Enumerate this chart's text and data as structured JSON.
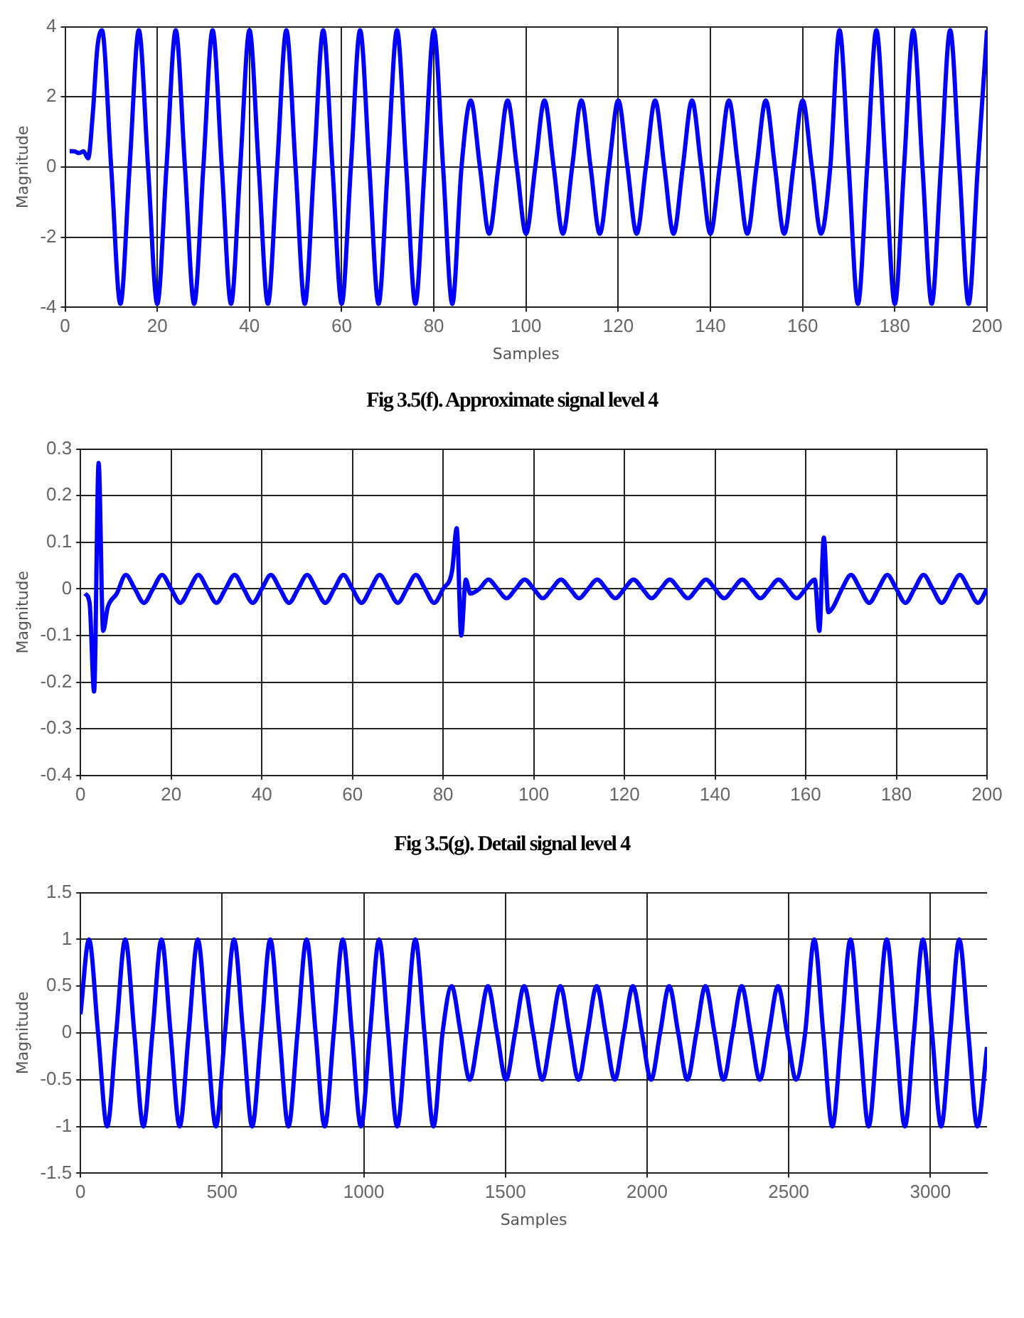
{
  "chart_data": [
    {
      "type": "line",
      "xlabel": "Samples",
      "ylabel": "Magnitude",
      "color": "#0000ff",
      "marker": "none",
      "grid": true,
      "xlim": [
        0,
        200
      ],
      "ylim": [
        -4,
        4
      ],
      "xticks": [
        0,
        20,
        40,
        60,
        80,
        100,
        120,
        140,
        160,
        180,
        200
      ],
      "yticks": [
        -4,
        -2,
        0,
        2,
        4
      ],
      "annotations": [
        "Fig 3.5(f). Approximate signal level 4"
      ],
      "x": [
        1,
        2,
        3,
        4,
        5,
        6,
        7,
        8,
        10,
        12,
        14,
        16,
        18,
        20,
        22,
        24,
        26,
        28,
        30,
        32,
        34,
        36,
        38,
        40,
        42,
        44,
        46,
        48,
        50,
        52,
        54,
        56,
        58,
        60,
        62,
        64,
        66,
        68,
        70,
        72,
        74,
        76,
        78,
        80,
        82,
        84,
        86,
        88,
        90,
        92,
        94,
        96,
        98,
        100,
        102,
        104,
        106,
        108,
        110,
        112,
        114,
        116,
        118,
        120,
        122,
        124,
        126,
        128,
        130,
        132,
        134,
        136,
        138,
        140,
        142,
        144,
        146,
        148,
        150,
        152,
        154,
        156,
        158,
        160,
        162,
        164,
        166,
        168,
        170,
        172,
        174,
        176,
        178,
        180,
        182,
        184,
        186,
        188,
        190,
        192,
        194,
        196,
        198,
        200
      ],
      "values": [
        0.45,
        0.45,
        0.4,
        0.45,
        0.25,
        1.5,
        3.4,
        3.9,
        0,
        -3.9,
        0,
        3.9,
        0,
        -3.9,
        0,
        3.9,
        0,
        -3.9,
        0,
        3.9,
        0,
        -3.9,
        0,
        3.9,
        0,
        -3.9,
        0,
        3.9,
        0,
        -3.9,
        0,
        3.9,
        0,
        -3.9,
        0,
        3.9,
        0,
        -3.9,
        0,
        3.9,
        0,
        -3.9,
        0,
        3.9,
        0,
        -3.9,
        0,
        1.9,
        0,
        -1.9,
        0,
        1.9,
        0,
        -1.9,
        0,
        1.9,
        0,
        -1.9,
        0,
        1.9,
        0,
        -1.9,
        0,
        1.9,
        0,
        -1.9,
        0,
        1.9,
        0,
        -1.9,
        0,
        1.9,
        0,
        -1.9,
        0,
        1.9,
        0,
        -1.9,
        0,
        1.9,
        0,
        -1.9,
        0,
        1.9,
        0,
        -1.9,
        0,
        3.9,
        0,
        -3.9,
        0,
        3.9,
        0,
        -3.9,
        0,
        3.9,
        0,
        -3.9,
        0,
        3.9,
        0,
        -3.9,
        0,
        3.9
      ]
    },
    {
      "type": "line",
      "ylabel": "Magnitude",
      "color": "#0000ff",
      "marker": "none",
      "grid": true,
      "xlim": [
        0,
        200
      ],
      "ylim": [
        -0.4,
        0.3
      ],
      "xticks": [
        0,
        20,
        40,
        60,
        80,
        100,
        120,
        140,
        160,
        180,
        200
      ],
      "yticks": [
        -0.4,
        -0.3,
        -0.2,
        -0.1,
        0,
        0.1,
        0.2,
        0.3
      ],
      "annotations": [
        "Fig 3.5(g). Detail signal level 4"
      ],
      "x": [
        1,
        2,
        3,
        4,
        5,
        6,
        8,
        10,
        12,
        14,
        16,
        18,
        20,
        22,
        24,
        26,
        28,
        30,
        32,
        34,
        36,
        38,
        40,
        42,
        44,
        46,
        48,
        50,
        52,
        54,
        56,
        58,
        60,
        62,
        64,
        66,
        68,
        70,
        72,
        74,
        76,
        78,
        80,
        82,
        83,
        84,
        85,
        86,
        88,
        90,
        92,
        94,
        96,
        98,
        100,
        102,
        104,
        106,
        108,
        110,
        112,
        114,
        116,
        118,
        120,
        122,
        124,
        126,
        128,
        130,
        132,
        134,
        136,
        138,
        140,
        142,
        144,
        146,
        148,
        150,
        152,
        154,
        156,
        158,
        160,
        162,
        163,
        164,
        165,
        166,
        168,
        170,
        172,
        174,
        176,
        178,
        180,
        182,
        184,
        186,
        188,
        190,
        192,
        194,
        196,
        198,
        200
      ],
      "values": [
        -0.01,
        -0.03,
        -0.22,
        0.27,
        -0.09,
        -0.04,
        -0.01,
        0.03,
        0,
        -0.03,
        0,
        0.03,
        0,
        -0.03,
        0,
        0.03,
        0,
        -0.03,
        0,
        0.03,
        0,
        -0.03,
        0,
        0.03,
        0,
        -0.03,
        0,
        0.03,
        0,
        -0.03,
        0,
        0.03,
        0,
        -0.03,
        0,
        0.03,
        0,
        -0.03,
        0,
        0.03,
        0,
        -0.03,
        0,
        0.04,
        0.13,
        -0.1,
        0.02,
        -0.01,
        0,
        0.02,
        0,
        -0.02,
        0,
        0.02,
        0,
        -0.02,
        0,
        0.02,
        0,
        -0.02,
        0,
        0.02,
        0,
        -0.02,
        0,
        0.02,
        0,
        -0.02,
        0,
        0.02,
        0,
        -0.02,
        0,
        0.02,
        0,
        -0.02,
        0,
        0.02,
        0,
        -0.02,
        0,
        0.02,
        0,
        -0.02,
        0,
        0.02,
        -0.09,
        0.11,
        -0.05,
        -0.04,
        0,
        0.03,
        0,
        -0.03,
        0,
        0.03,
        0,
        -0.03,
        0,
        0.03,
        0,
        -0.03,
        0,
        0.03,
        0,
        -0.03,
        0
      ]
    },
    {
      "type": "line",
      "xlabel": "Samples",
      "ylabel": "Magnitude",
      "color": "#0000ff",
      "marker": "none",
      "grid": true,
      "xlim": [
        0,
        3200
      ],
      "ylim": [
        -1.5,
        1.5
      ],
      "xticks": [
        0,
        500,
        1000,
        1500,
        2000,
        2500,
        3000
      ],
      "yticks": [
        -1.5,
        -1,
        -0.5,
        0,
        0.5,
        1,
        1.5
      ],
      "x": [
        0,
        30,
        62,
        94,
        126,
        158,
        190,
        222,
        254,
        286,
        318,
        350,
        382,
        414,
        446,
        478,
        510,
        542,
        574,
        606,
        638,
        670,
        702,
        734,
        766,
        798,
        830,
        862,
        894,
        926,
        958,
        990,
        1022,
        1054,
        1086,
        1118,
        1150,
        1182,
        1214,
        1246,
        1278,
        1310,
        1342,
        1374,
        1406,
        1438,
        1470,
        1502,
        1534,
        1566,
        1598,
        1630,
        1662,
        1694,
        1726,
        1758,
        1790,
        1822,
        1854,
        1886,
        1918,
        1950,
        1982,
        2014,
        2046,
        2078,
        2110,
        2142,
        2174,
        2206,
        2238,
        2270,
        2302,
        2334,
        2366,
        2398,
        2430,
        2462,
        2494,
        2526,
        2558,
        2590,
        2622,
        2654,
        2686,
        2718,
        2750,
        2782,
        2814,
        2846,
        2878,
        2910,
        2942,
        2974,
        3006,
        3038,
        3070,
        3102,
        3134,
        3166,
        3200
      ],
      "values": [
        0.2,
        1,
        0,
        -1,
        0,
        1,
        0,
        -1,
        0,
        1,
        0,
        -1,
        0,
        1,
        0,
        -1,
        0,
        1,
        0,
        -1,
        0,
        1,
        0,
        -1,
        0,
        1,
        0,
        -1,
        0,
        1,
        0,
        -1,
        0,
        1,
        0,
        -1,
        0,
        1,
        0,
        -1,
        0,
        0.5,
        0,
        -0.5,
        0,
        0.5,
        0,
        -0.5,
        0,
        0.5,
        0,
        -0.5,
        0,
        0.5,
        0,
        -0.5,
        0,
        0.5,
        0,
        -0.5,
        0,
        0.5,
        0,
        -0.5,
        0,
        0.5,
        0,
        -0.5,
        0,
        0.5,
        0,
        -0.5,
        0,
        0.5,
        0,
        -0.5,
        0,
        0.5,
        0,
        -0.5,
        0,
        1,
        0,
        -1,
        0,
        1,
        0,
        -1,
        0,
        1,
        0,
        -1,
        0,
        1,
        0,
        -1,
        0,
        1,
        0,
        -1,
        -0.15
      ]
    }
  ]
}
